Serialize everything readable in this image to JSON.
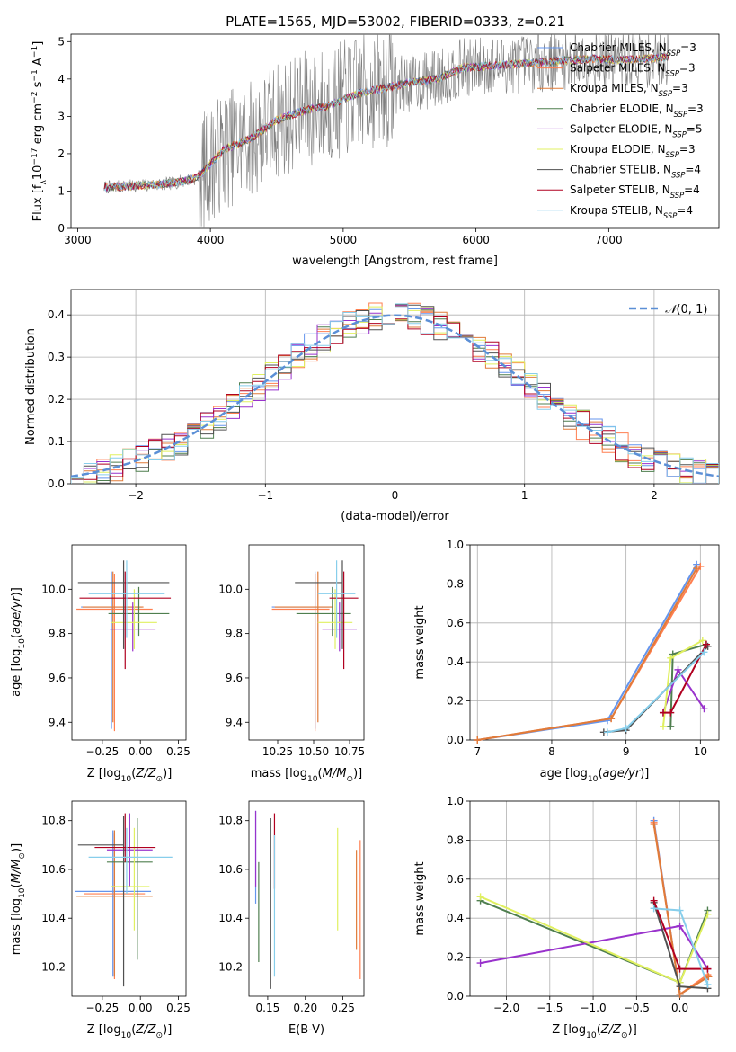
{
  "figure": {
    "title": "PLATE=1565, MJD=53002, FIBERID=0333, z=0.21"
  },
  "colors": {
    "models": [
      "#6495ed",
      "#ff7f50",
      "#e07b39",
      "#4f7f4f",
      "#9932cc",
      "#e0f060",
      "#505050",
      "#b00020",
      "#87ceeb"
    ],
    "data_gray": "#7f7f7f",
    "normal_curve": "#5b8fd6",
    "grid": "#b0b0b0"
  },
  "chart_data": [
    {
      "id": "spectrum",
      "type": "line",
      "xlabel": "wavelength [Angstrom, rest frame]",
      "ylabel": "Flux [f_λ 10^-17 erg cm^-2 s^-1 A^-1]",
      "xlim": [
        2950,
        7830
      ],
      "ylim": [
        0,
        5.2
      ],
      "xticks": [
        3000,
        4000,
        5000,
        6000,
        7000
      ],
      "yticks": [
        0,
        1,
        2,
        3,
        4,
        5
      ],
      "legend_position": "top-right",
      "continuum": {
        "wavelength": [
          3200,
          3500,
          3700,
          3900,
          4100,
          4300,
          4500,
          4700,
          4900,
          5100,
          5300,
          5500,
          5700,
          5900,
          6100,
          6300,
          6500,
          6700,
          6900,
          7100,
          7300,
          7450
        ],
        "flux": [
          1.1,
          1.15,
          1.2,
          1.35,
          2.1,
          2.4,
          2.9,
          3.15,
          3.3,
          3.6,
          3.75,
          3.9,
          4.0,
          4.3,
          4.35,
          4.4,
          4.45,
          4.5,
          4.55,
          4.5,
          4.55,
          4.6
        ]
      },
      "series": [
        {
          "name": "Chabrier MILES, N_SSP=3",
          "color_index": 0
        },
        {
          "name": "Salpeter MILES, N_SSP=3",
          "color_index": 1
        },
        {
          "name": "Kroupa MILES, N_SSP=3",
          "color_index": 2
        },
        {
          "name": "Chabrier ELODIE, N_SSP=3",
          "color_index": 3
        },
        {
          "name": "Salpeter ELODIE, N_SSP=5",
          "color_index": 4
        },
        {
          "name": "Kroupa ELODIE, N_SSP=3",
          "color_index": 5
        },
        {
          "name": "Chabrier STELIB, N_SSP=4",
          "color_index": 6
        },
        {
          "name": "Salpeter STELIB, N_SSP=4",
          "color_index": 7
        },
        {
          "name": "Kroupa STELIB, N_SSP=4",
          "color_index": 8
        }
      ],
      "legend_entries": [
        {
          "text": "Chabrier MILES, N",
          "sub": "SSP",
          "tail": "=3"
        },
        {
          "text": "Salpeter MILES, N",
          "sub": "SSP",
          "tail": "=3"
        },
        {
          "text": "Kroupa MILES, N",
          "sub": "SSP",
          "tail": "=3"
        },
        {
          "text": "Chabrier ELODIE, N",
          "sub": "SSP",
          "tail": "=3"
        },
        {
          "text": "Salpeter ELODIE, N",
          "sub": "SSP",
          "tail": "=5"
        },
        {
          "text": "Kroupa ELODIE, N",
          "sub": "SSP",
          "tail": "=3"
        },
        {
          "text": "Chabrier STELIB, N",
          "sub": "SSP",
          "tail": "=4"
        },
        {
          "text": "Salpeter STELIB, N",
          "sub": "SSP",
          "tail": "=4"
        },
        {
          "text": "Kroupa STELIB, N",
          "sub": "SSP",
          "tail": "=4"
        }
      ]
    },
    {
      "id": "residuals",
      "type": "histogram",
      "xlabel": "(data-model)/error",
      "ylabel": "Normed distribution",
      "xlim": [
        -2.5,
        2.5
      ],
      "ylim": [
        0,
        0.46
      ],
      "xticks": [
        -2,
        -1,
        0,
        1,
        2
      ],
      "yticks": [
        0.0,
        0.1,
        0.2,
        0.3,
        0.4
      ],
      "grid": true,
      "legend_position": "top-right",
      "legend_label": "N(0,1)",
      "bins": 50
    },
    {
      "id": "age_vs_Z",
      "type": "errorbar",
      "xlabel": "Z [log10(Z/Z_sun)]",
      "ylabel": "age [log10(age/yr)]",
      "xlim": [
        -0.45,
        0.3
      ],
      "ylim": [
        9.32,
        10.2
      ],
      "xticks": [
        -0.25,
        0.0,
        0.25
      ],
      "yticks": [
        9.4,
        9.6,
        9.8,
        10.0
      ],
      "points": [
        {
          "x": -0.19,
          "xerr": [
            0.2,
            0.2
          ],
          "y": 9.92,
          "yerr": [
            0.55,
            0.16
          ]
        },
        {
          "x": -0.17,
          "xerr": [
            0.25,
            0.25
          ],
          "y": 9.91,
          "yerr": [
            0.55,
            0.16
          ]
        },
        {
          "x": -0.18,
          "xerr": [
            0.2,
            0.2
          ],
          "y": 9.92,
          "yerr": [
            0.52,
            0.16
          ]
        },
        {
          "x": -0.01,
          "xerr": [
            0.2,
            0.2
          ],
          "y": 9.89,
          "yerr": [
            0.1,
            0.12
          ]
        },
        {
          "x": -0.05,
          "xerr": [
            0.15,
            0.15
          ],
          "y": 9.82,
          "yerr": [
            0.1,
            0.12
          ]
        },
        {
          "x": -0.04,
          "xerr": [
            0.15,
            0.15
          ],
          "y": 9.85,
          "yerr": [
            0.12,
            0.15
          ]
        },
        {
          "x": -0.11,
          "xerr": [
            0.3,
            0.3
          ],
          "y": 10.03,
          "yerr": [
            0.3,
            0.1
          ]
        },
        {
          "x": -0.1,
          "xerr": [
            0.3,
            0.3
          ],
          "y": 9.96,
          "yerr": [
            0.32,
            0.12
          ]
        },
        {
          "x": -0.09,
          "xerr": [
            0.25,
            0.25
          ],
          "y": 9.98,
          "yerr": [
            0.2,
            0.15
          ]
        }
      ]
    },
    {
      "id": "age_vs_mass",
      "type": "errorbar",
      "xlabel": "mass [log10(M/M_sun)]",
      "xlim": [
        10.05,
        10.85
      ],
      "ylim": [
        9.32,
        10.2
      ],
      "xticks": [
        10.25,
        10.5,
        10.75
      ],
      "yticks": [
        9.4,
        9.6,
        9.8,
        10.0
      ],
      "points": [
        {
          "x": 10.51,
          "xerr": [
            0.3,
            0.1
          ],
          "y": 9.92,
          "yerr": [
            0.55,
            0.16
          ]
        },
        {
          "x": 10.51,
          "xerr": [
            0.3,
            0.1
          ],
          "y": 9.91,
          "yerr": [
            0.55,
            0.16
          ]
        },
        {
          "x": 10.53,
          "xerr": [
            0.3,
            0.1
          ],
          "y": 9.92,
          "yerr": [
            0.52,
            0.16
          ]
        },
        {
          "x": 10.63,
          "xerr": [
            0.25,
            0.13
          ],
          "y": 9.89,
          "yerr": [
            0.1,
            0.12
          ]
        },
        {
          "x": 10.68,
          "xerr": [
            0.12,
            0.12
          ],
          "y": 9.82,
          "yerr": [
            0.1,
            0.12
          ]
        },
        {
          "x": 10.65,
          "xerr": [
            0.12,
            0.12
          ],
          "y": 9.85,
          "yerr": [
            0.12,
            0.15
          ]
        },
        {
          "x": 10.7,
          "xerr": [
            0.33,
            0.0
          ],
          "y": 10.03,
          "yerr": [
            0.3,
            0.1
          ]
        },
        {
          "x": 10.71,
          "xerr": [
            0.1,
            0.1
          ],
          "y": 9.96,
          "yerr": [
            0.32,
            0.12
          ]
        },
        {
          "x": 10.66,
          "xerr": [
            0.13,
            0.13
          ],
          "y": 9.98,
          "yerr": [
            0.2,
            0.15
          ]
        }
      ]
    },
    {
      "id": "weight_vs_age",
      "type": "line",
      "xlabel": "age [log10(age/yr)]",
      "ylabel": "mass weight",
      "xlim": [
        6.9,
        10.25
      ],
      "ylim": [
        0,
        1.0
      ],
      "xticks": [
        7,
        8,
        9,
        10
      ],
      "yticks": [
        0.0,
        0.2,
        0.4,
        0.6,
        0.8,
        1.0
      ],
      "grid": true,
      "series": [
        {
          "color_index": 0,
          "x": [
            7.0,
            8.75,
            9.95
          ],
          "y": [
            0.0,
            0.1,
            0.9
          ]
        },
        {
          "color_index": 1,
          "x": [
            7.0,
            8.8,
            10.0
          ],
          "y": [
            0.0,
            0.11,
            0.89
          ]
        },
        {
          "color_index": 2,
          "x": [
            7.0,
            8.8,
            9.95
          ],
          "y": [
            0.0,
            0.11,
            0.88
          ]
        },
        {
          "color_index": 3,
          "x": [
            9.6,
            9.63,
            10.08
          ],
          "y": [
            0.07,
            0.44,
            0.49
          ]
        },
        {
          "color_index": 4,
          "x": [
            9.5,
            9.7,
            10.05
          ],
          "y": [
            0.14,
            0.36,
            0.16
          ]
        },
        {
          "color_index": 5,
          "x": [
            9.5,
            9.6,
            10.03
          ],
          "y": [
            0.07,
            0.42,
            0.51
          ]
        },
        {
          "color_index": 6,
          "x": [
            8.7,
            9.0,
            10.1
          ],
          "y": [
            0.04,
            0.05,
            0.48
          ]
        },
        {
          "color_index": 7,
          "x": [
            9.5,
            9.6,
            10.08
          ],
          "y": [
            0.14,
            0.14,
            0.49
          ]
        },
        {
          "color_index": 8,
          "x": [
            8.75,
            9.0,
            10.05
          ],
          "y": [
            0.04,
            0.06,
            0.45
          ]
        }
      ]
    },
    {
      "id": "mass_vs_Z",
      "type": "errorbar",
      "xlabel": "Z [log10(Z/Z_sun)]",
      "ylabel": "mass [log10(M/M_sun)]",
      "xlim": [
        -0.45,
        0.3
      ],
      "ylim": [
        10.08,
        10.88
      ],
      "xticks": [
        -0.25,
        0.0,
        0.25
      ],
      "yticks": [
        10.2,
        10.4,
        10.6,
        10.8
      ],
      "points": [
        {
          "x": -0.18,
          "xerr": [
            0.25,
            0.25
          ],
          "y": 10.51,
          "yerr": [
            0.35,
            0.25
          ]
        },
        {
          "x": -0.17,
          "xerr": [
            0.2,
            0.2
          ],
          "y": 10.5,
          "yerr": [
            0.35,
            0.25
          ]
        },
        {
          "x": -0.17,
          "xerr": [
            0.25,
            0.25
          ],
          "y": 10.49,
          "yerr": [
            0.33,
            0.27
          ]
        },
        {
          "x": -0.02,
          "xerr": [
            0.2,
            0.1
          ],
          "y": 10.63,
          "yerr": [
            0.4,
            0.18
          ]
        },
        {
          "x": -0.07,
          "xerr": [
            0.15,
            0.15
          ],
          "y": 10.68,
          "yerr": [
            0.15,
            0.15
          ]
        },
        {
          "x": -0.04,
          "xerr": [
            0.15,
            0.1
          ],
          "y": 10.53,
          "yerr": [
            0.18,
            0.24
          ]
        },
        {
          "x": -0.11,
          "xerr": [
            0.3,
            0.0
          ],
          "y": 10.7,
          "yerr": [
            0.58,
            0.12
          ]
        },
        {
          "x": -0.1,
          "xerr": [
            0.2,
            0.2
          ],
          "y": 10.69,
          "yerr": [
            0.06,
            0.14
          ]
        },
        {
          "x": -0.09,
          "xerr": [
            0.25,
            0.3
          ],
          "y": 10.65,
          "yerr": [
            0.15,
            0.12
          ]
        }
      ]
    },
    {
      "id": "mass_vs_ebv",
      "type": "errorbar",
      "xlabel": "E(B-V)",
      "xlim": [
        0.125,
        0.278
      ],
      "ylim": [
        10.08,
        10.88
      ],
      "xticks": [
        0.15,
        0.2,
        0.25
      ],
      "yticks": [
        10.2,
        10.4,
        10.6,
        10.8
      ],
      "points": [
        {
          "x": 0.134,
          "xerr": [
            0,
            0
          ],
          "y": 10.65,
          "yerr": [
            0.19,
            0.19
          ]
        },
        {
          "x": 0.273,
          "xerr": [
            0,
            0
          ],
          "y": 10.45,
          "yerr": [
            0.3,
            0.27
          ]
        },
        {
          "x": 0.268,
          "xerr": [
            0,
            0
          ],
          "y": 10.47,
          "yerr": [
            0.2,
            0.21
          ]
        },
        {
          "x": 0.138,
          "xerr": [
            0,
            0
          ],
          "y": 10.43,
          "yerr": [
            0.21,
            0.2
          ]
        },
        {
          "x": 0.134,
          "xerr": [
            0,
            0
          ],
          "y": 10.68,
          "yerr": [
            0.15,
            0.16
          ]
        },
        {
          "x": 0.243,
          "xerr": [
            0,
            0
          ],
          "y": 10.56,
          "yerr": [
            0.21,
            0.21
          ]
        },
        {
          "x": 0.154,
          "xerr": [
            0,
            0
          ],
          "y": 10.46,
          "yerr": [
            0.35,
            0.35
          ]
        },
        {
          "x": 0.159,
          "xerr": [
            0,
            0
          ],
          "y": 10.67,
          "yerr": [
            0.15,
            0.16
          ]
        },
        {
          "x": 0.159,
          "xerr": [
            0,
            0
          ],
          "y": 10.45,
          "yerr": [
            0.29,
            0.29
          ]
        }
      ]
    },
    {
      "id": "weight_vs_Z",
      "type": "line",
      "xlabel": "Z [log10(Z/Z_sun)]",
      "ylabel": "mass weight",
      "xlim": [
        -2.42,
        0.45
      ],
      "ylim": [
        0,
        1.0
      ],
      "xticks": [
        -2.0,
        -1.5,
        -1.0,
        -0.5,
        0.0
      ],
      "yticks": [
        0.0,
        0.2,
        0.4,
        0.6,
        0.8,
        1.0
      ],
      "grid": true,
      "series": [
        {
          "color_index": 0,
          "x": [
            -0.3,
            0.0,
            0.32
          ],
          "y": [
            0.9,
            0.01,
            0.1
          ]
        },
        {
          "color_index": 1,
          "x": [
            -0.3,
            0.0,
            0.32
          ],
          "y": [
            0.89,
            0.01,
            0.11
          ]
        },
        {
          "color_index": 2,
          "x": [
            -0.3,
            0.0,
            0.33
          ],
          "y": [
            0.88,
            0.01,
            0.1
          ]
        },
        {
          "color_index": 3,
          "x": [
            -2.3,
            0.0,
            0.32
          ],
          "y": [
            0.49,
            0.07,
            0.44
          ]
        },
        {
          "color_index": 4,
          "x": [
            -2.3,
            0.0,
            0.32
          ],
          "y": [
            0.17,
            0.36,
            0.14
          ]
        },
        {
          "color_index": 5,
          "x": [
            -2.3,
            0.0,
            0.32
          ],
          "y": [
            0.51,
            0.07,
            0.42
          ]
        },
        {
          "color_index": 6,
          "x": [
            -0.3,
            0.0,
            0.32
          ],
          "y": [
            0.48,
            0.05,
            0.04
          ]
        },
        {
          "color_index": 7,
          "x": [
            -0.3,
            0.0,
            0.32
          ],
          "y": [
            0.49,
            0.14,
            0.14
          ]
        },
        {
          "color_index": 8,
          "x": [
            -0.3,
            0.0,
            0.32
          ],
          "y": [
            0.45,
            0.44,
            0.06
          ]
        }
      ]
    }
  ]
}
